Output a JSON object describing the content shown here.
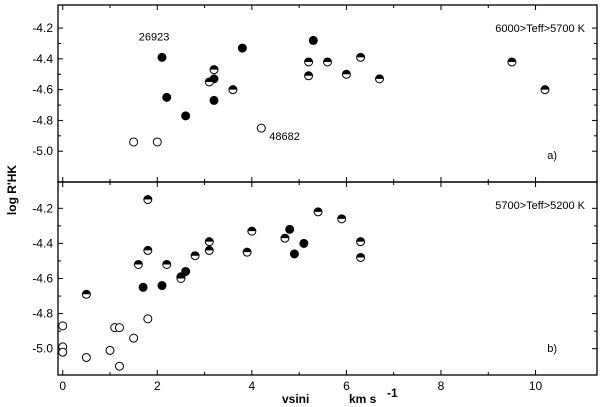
{
  "chart_data": {
    "type": "scatter",
    "xlabel": "vsini",
    "xunit_prefix": "km s",
    "xunit_exp": "-1",
    "ylabel": "log R'HK",
    "xlim": [
      -0.1,
      11.3
    ],
    "x_ticks": [
      0,
      2,
      4,
      6,
      8,
      10
    ],
    "panels": [
      {
        "id": "a",
        "panel_label": "a)",
        "range_label": "6000>Teff>5700 K",
        "ylim": [
          -5.2,
          -4.05
        ],
        "y_ticks": [
          -4.2,
          -4.4,
          -4.6,
          -4.8,
          -5.0
        ],
        "point_labels": [
          {
            "text": "26923",
            "x": 2.1,
            "y": -4.39
          },
          {
            "text": "48682",
            "x": 4.2,
            "y": -4.85
          }
        ],
        "series": [
          {
            "marker": "filled",
            "points": [
              [
                2.1,
                -4.39
              ],
              [
                2.2,
                -4.65
              ],
              [
                2.6,
                -4.77
              ],
              [
                3.2,
                -4.67
              ],
              [
                3.2,
                -4.53
              ],
              [
                3.8,
                -4.33
              ],
              [
                5.3,
                -4.28
              ]
            ]
          },
          {
            "marker": "half",
            "points": [
              [
                3.1,
                -4.55
              ],
              [
                3.2,
                -4.47
              ],
              [
                3.6,
                -4.6
              ],
              [
                5.2,
                -4.42
              ],
              [
                5.2,
                -4.51
              ],
              [
                5.6,
                -4.42
              ],
              [
                6.0,
                -4.5
              ],
              [
                6.3,
                -4.39
              ],
              [
                6.7,
                -4.53
              ],
              [
                9.5,
                -4.42
              ],
              [
                10.2,
                -4.6
              ]
            ]
          },
          {
            "marker": "open",
            "points": [
              [
                1.5,
                -4.94
              ],
              [
                2.0,
                -4.94
              ],
              [
                4.2,
                -4.85
              ]
            ]
          }
        ]
      },
      {
        "id": "b",
        "panel_label": "b)",
        "range_label": "5700>Teff>5200 K",
        "ylim": [
          -5.15,
          -4.05
        ],
        "y_ticks": [
          -4.2,
          -4.4,
          -4.6,
          -4.8,
          -5.0
        ],
        "point_labels": [],
        "series": [
          {
            "marker": "filled",
            "points": [
              [
                1.7,
                -4.65
              ],
              [
                2.1,
                -4.64
              ],
              [
                2.5,
                -4.59
              ],
              [
                2.6,
                -4.56
              ],
              [
                4.8,
                -4.32
              ],
              [
                4.9,
                -4.46
              ],
              [
                5.1,
                -4.4
              ]
            ]
          },
          {
            "marker": "half",
            "points": [
              [
                0.5,
                -4.69
              ],
              [
                1.6,
                -4.52
              ],
              [
                1.8,
                -4.15
              ],
              [
                1.8,
                -4.44
              ],
              [
                2.2,
                -4.52
              ],
              [
                2.5,
                -4.6
              ],
              [
                2.8,
                -4.47
              ],
              [
                3.1,
                -4.44
              ],
              [
                3.1,
                -4.39
              ],
              [
                3.9,
                -4.45
              ],
              [
                4.0,
                -4.33
              ],
              [
                4.7,
                -4.37
              ],
              [
                5.4,
                -4.22
              ],
              [
                5.9,
                -4.26
              ],
              [
                6.3,
                -4.39
              ],
              [
                6.3,
                -4.48
              ]
            ]
          },
          {
            "marker": "open",
            "points": [
              [
                0.0,
                -4.87
              ],
              [
                0.0,
                -4.99
              ],
              [
                0.0,
                -5.02
              ],
              [
                0.5,
                -5.05
              ],
              [
                1.0,
                -5.01
              ],
              [
                1.1,
                -4.88
              ],
              [
                1.2,
                -4.88
              ],
              [
                1.2,
                -5.1
              ],
              [
                1.5,
                -4.94
              ],
              [
                1.8,
                -4.83
              ]
            ]
          }
        ]
      }
    ]
  }
}
